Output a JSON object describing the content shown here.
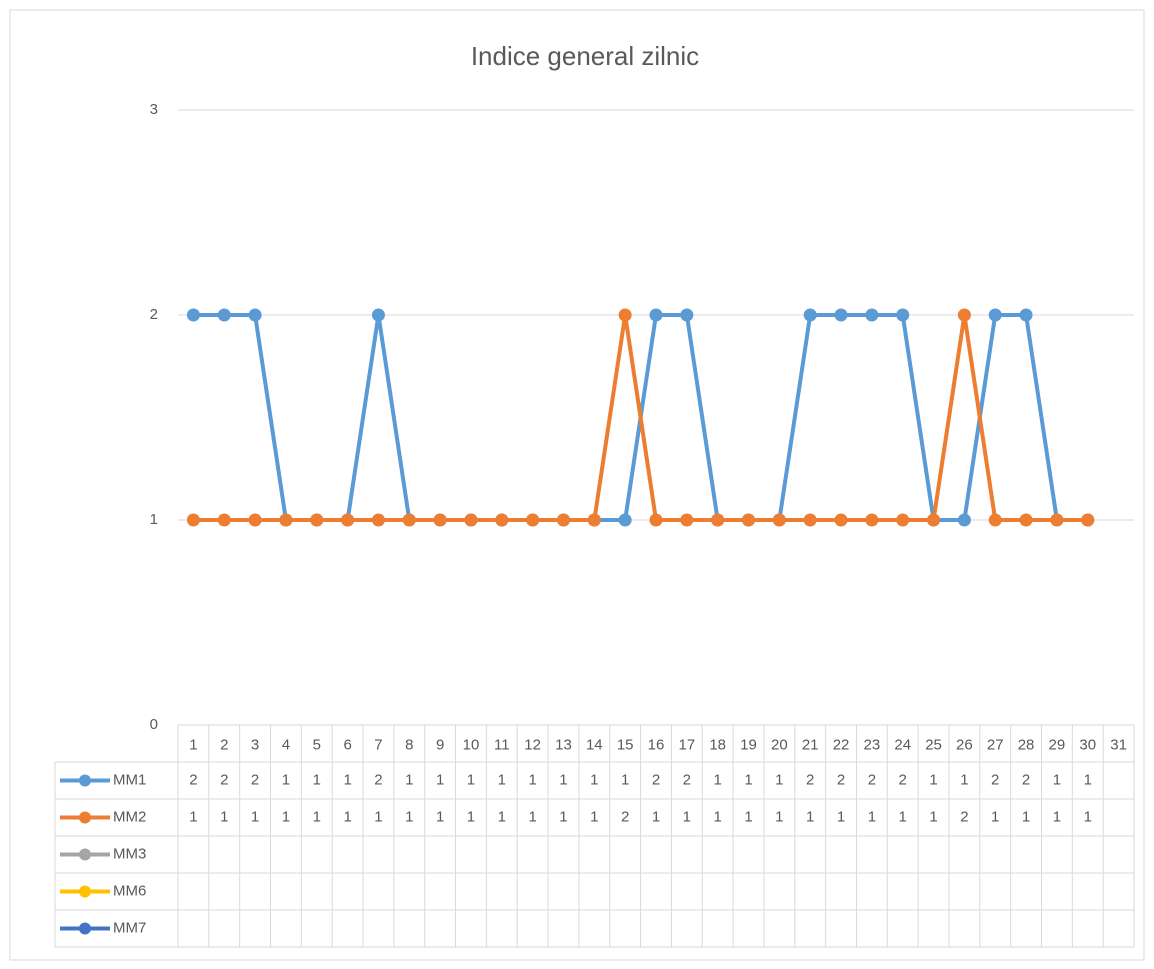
{
  "chart_data": {
    "type": "line",
    "title": "Indice general zilnic",
    "categories": [
      "1",
      "2",
      "3",
      "4",
      "5",
      "6",
      "7",
      "8",
      "9",
      "10",
      "11",
      "12",
      "13",
      "14",
      "15",
      "16",
      "17",
      "18",
      "19",
      "20",
      "21",
      "22",
      "23",
      "24",
      "25",
      "26",
      "27",
      "28",
      "29",
      "30",
      "31"
    ],
    "series": [
      {
        "name": "MM1",
        "color": "#5b9bd5",
        "values": [
          2,
          2,
          2,
          1,
          1,
          1,
          2,
          1,
          1,
          1,
          1,
          1,
          1,
          1,
          1,
          2,
          2,
          1,
          1,
          1,
          2,
          2,
          2,
          2,
          1,
          1,
          2,
          2,
          1,
          1,
          null
        ]
      },
      {
        "name": "MM2",
        "color": "#ed7d31",
        "values": [
          1,
          1,
          1,
          1,
          1,
          1,
          1,
          1,
          1,
          1,
          1,
          1,
          1,
          1,
          2,
          1,
          1,
          1,
          1,
          1,
          1,
          1,
          1,
          1,
          1,
          2,
          1,
          1,
          1,
          1,
          null
        ]
      },
      {
        "name": "MM3",
        "color": "#a5a5a5",
        "values": [
          null,
          null,
          null,
          null,
          null,
          null,
          null,
          null,
          null,
          null,
          null,
          null,
          null,
          null,
          null,
          null,
          null,
          null,
          null,
          null,
          null,
          null,
          null,
          null,
          null,
          null,
          null,
          null,
          null,
          null,
          null
        ]
      },
      {
        "name": "MM6",
        "color": "#ffc000",
        "values": [
          null,
          null,
          null,
          null,
          null,
          null,
          null,
          null,
          null,
          null,
          null,
          null,
          null,
          null,
          null,
          null,
          null,
          null,
          null,
          null,
          null,
          null,
          null,
          null,
          null,
          null,
          null,
          null,
          null,
          null,
          null
        ]
      },
      {
        "name": "MM7",
        "color": "#4472c4",
        "values": [
          null,
          null,
          null,
          null,
          null,
          null,
          null,
          null,
          null,
          null,
          null,
          null,
          null,
          null,
          null,
          null,
          null,
          null,
          null,
          null,
          null,
          null,
          null,
          null,
          null,
          null,
          null,
          null,
          null,
          null,
          null
        ]
      }
    ],
    "ylim": [
      0,
      3
    ],
    "yticks": [
      0,
      1,
      2,
      3
    ],
    "grid": true
  }
}
